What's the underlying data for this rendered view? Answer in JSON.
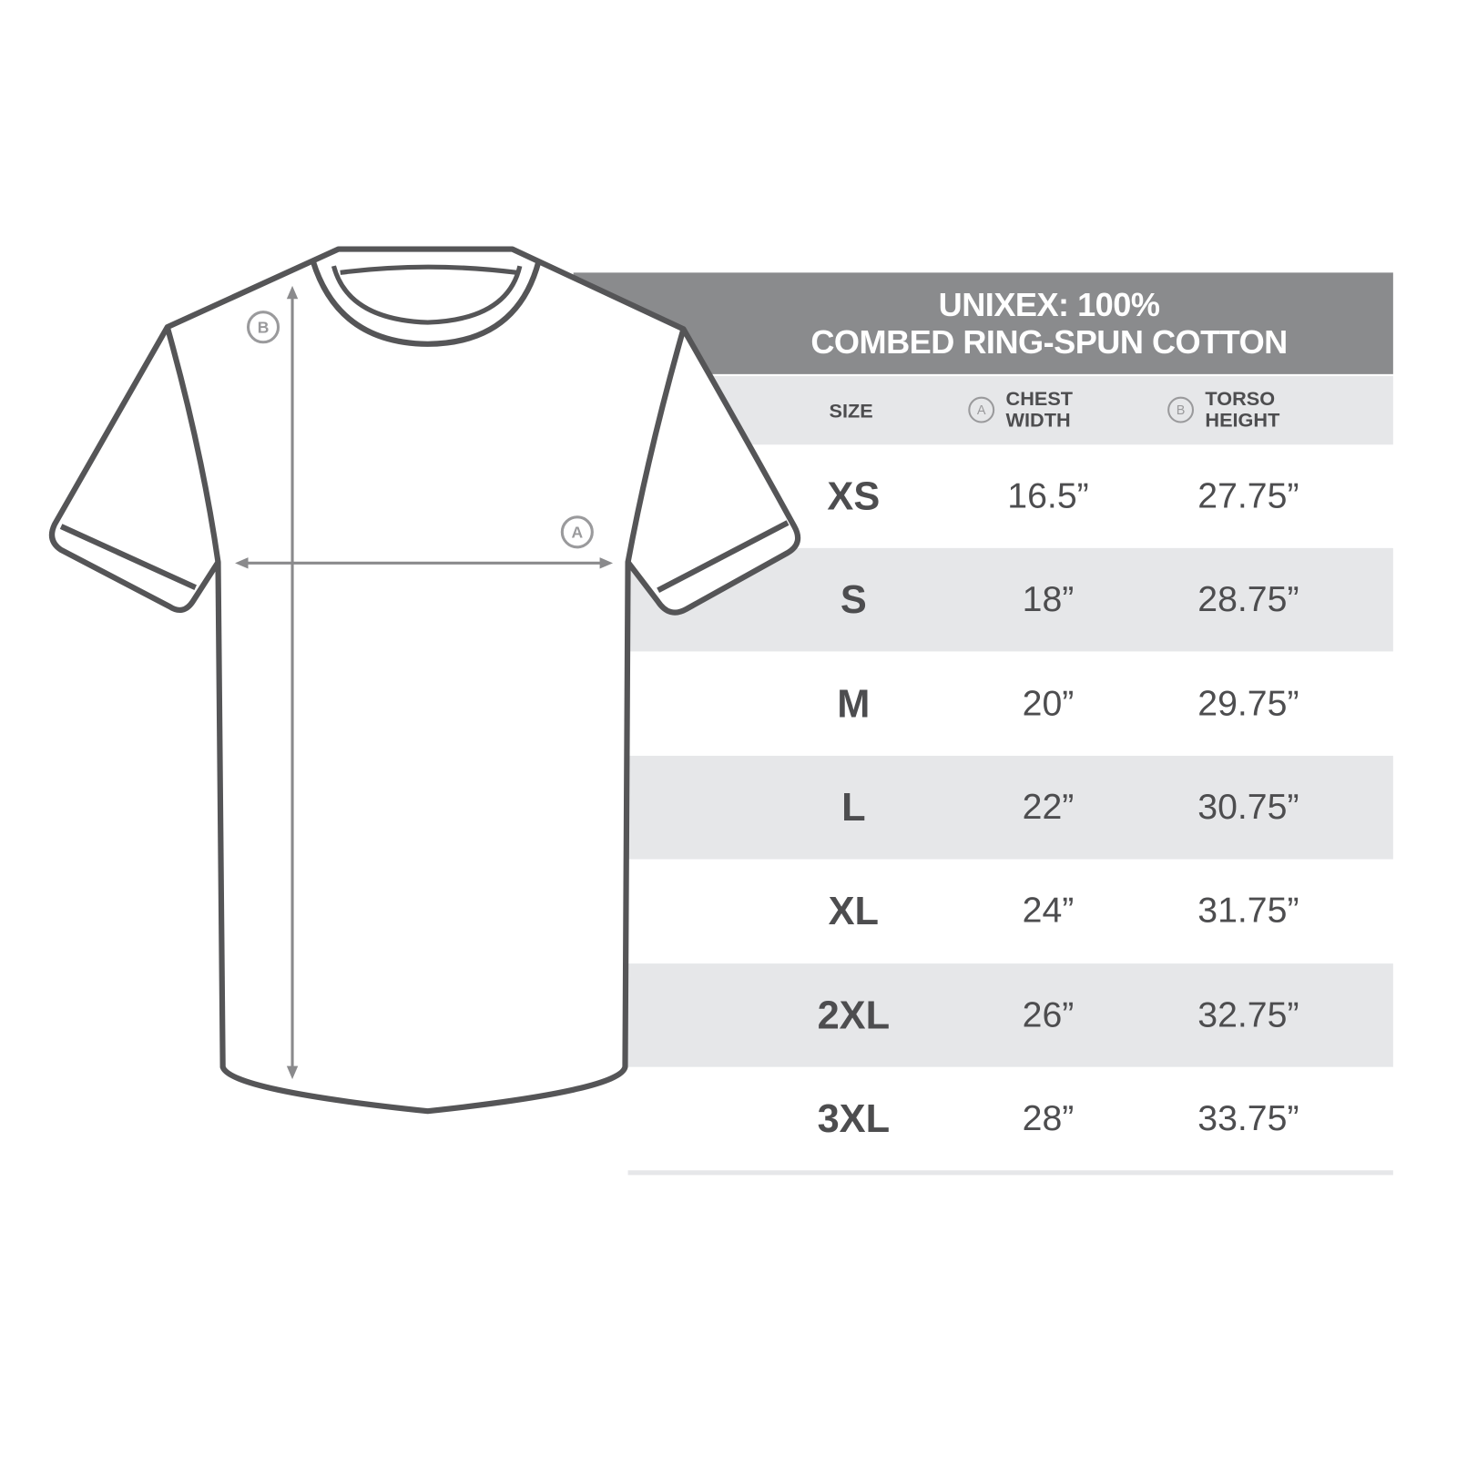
{
  "title_line1": "UNIXEX: 100%",
  "title_line2": "COMBED RING-SPUN COTTON",
  "columns": {
    "size": "SIZE",
    "chest": {
      "marker": "A",
      "line1": "CHEST",
      "line2": "WIDTH"
    },
    "torso": {
      "marker": "B",
      "line1": "TORSO",
      "line2": "HEIGHT"
    }
  },
  "rows": [
    {
      "size": "XS",
      "chest": "16.5”",
      "torso": "27.75”"
    },
    {
      "size": "S",
      "chest": "18”",
      "torso": "28.75”"
    },
    {
      "size": "M",
      "chest": "20”",
      "torso": "29.75”"
    },
    {
      "size": "L",
      "chest": "22”",
      "torso": "30.75”"
    },
    {
      "size": "XL",
      "chest": "24”",
      "torso": "31.75”"
    },
    {
      "size": "2XL",
      "chest": "26”",
      "torso": "32.75”"
    },
    {
      "size": "3XL",
      "chest": "28”",
      "torso": "33.75”"
    }
  ],
  "diagram": {
    "marker_chest": "A",
    "marker_torso": "B"
  },
  "colors": {
    "header": "#8a8b8d",
    "band": "#e6e7e9",
    "text": "#4d4d4f",
    "outline": "#555557"
  }
}
